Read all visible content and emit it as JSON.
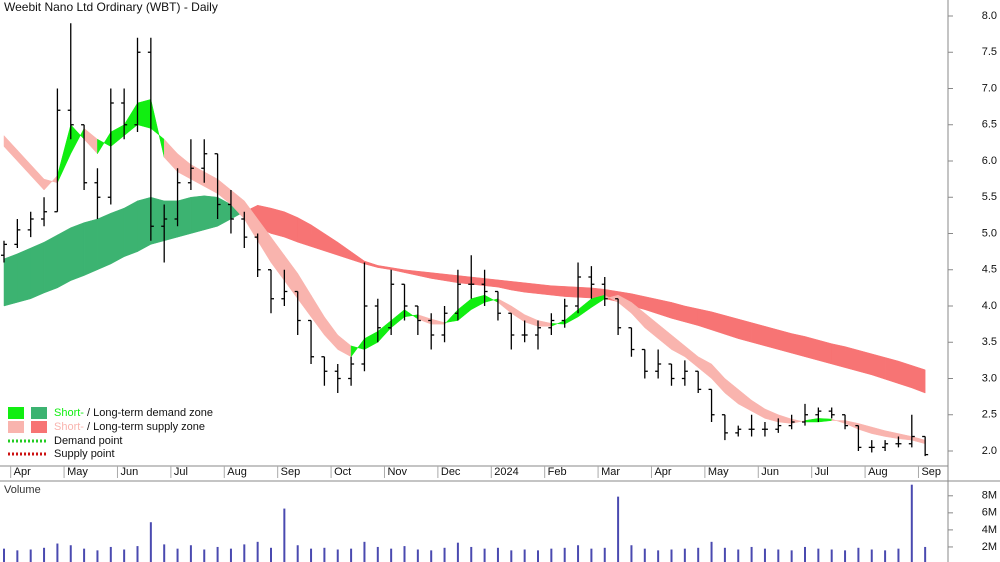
{
  "chart_data": {
    "type": "ohlc",
    "title": "Weebit Nano Ltd Ordinary (WBT) - Daily",
    "color": "#000000",
    "categories": [
      null,
      "Apr",
      null,
      null,
      null,
      "May",
      null,
      null,
      null,
      "Jun",
      null,
      null,
      null,
      "Jul",
      null,
      null,
      null,
      "Aug",
      null,
      null,
      null,
      "Sep",
      null,
      null,
      null,
      "Oct",
      null,
      null,
      null,
      "Nov",
      null,
      null,
      null,
      "Dec",
      null,
      null,
      null,
      "2024",
      null,
      null,
      null,
      "Feb",
      null,
      null,
      null,
      "Mar",
      null,
      null,
      null,
      "Apr",
      null,
      null,
      null,
      "May",
      null,
      null,
      null,
      "Jun",
      null,
      null,
      null,
      "Jul",
      null,
      null,
      null,
      "Aug",
      null,
      null,
      null,
      "Sep"
    ],
    "open": [
      4.7,
      4.85,
      5.05,
      5.2,
      5.3,
      6.7,
      6.5,
      5.7,
      5.5,
      6.8,
      6.5,
      7.5,
      5.1,
      5.2,
      5.7,
      5.9,
      6.1,
      5.4,
      5.2,
      4.95,
      4.5,
      4.1,
      4.2,
      3.8,
      3.3,
      3.1,
      3.0,
      3.2,
      4.0,
      3.7,
      4.3,
      4.0,
      3.8,
      3.6,
      3.9,
      4.3,
      4.3,
      4.2,
      3.9,
      3.6,
      3.6,
      3.7,
      3.8,
      4.0,
      4.4,
      4.3,
      4.1,
      3.7,
      3.4,
      3.1,
      3.2,
      3.0,
      3.1,
      2.85,
      2.5,
      2.25,
      2.3,
      2.3,
      2.3,
      2.35,
      2.4,
      2.5,
      2.55,
      2.5,
      2.35,
      2.05,
      2.05,
      2.1,
      2.1,
      2.2
    ],
    "high": [
      4.9,
      5.2,
      5.3,
      5.5,
      7.0,
      7.9,
      6.5,
      5.9,
      7.0,
      7.0,
      7.7,
      7.7,
      5.4,
      5.9,
      6.3,
      6.3,
      6.1,
      5.6,
      5.3,
      5.0,
      4.5,
      4.5,
      4.2,
      3.8,
      3.3,
      3.2,
      3.3,
      4.6,
      4.1,
      4.5,
      4.3,
      4.0,
      3.9,
      4.0,
      4.5,
      4.7,
      4.5,
      4.2,
      3.9,
      3.8,
      3.8,
      3.9,
      4.1,
      4.6,
      4.55,
      4.4,
      4.1,
      3.7,
      3.4,
      3.4,
      3.2,
      3.25,
      3.1,
      2.85,
      2.5,
      2.35,
      2.5,
      2.4,
      2.45,
      2.5,
      2.65,
      2.6,
      2.6,
      2.5,
      2.35,
      2.15,
      2.15,
      2.2,
      2.5,
      2.2
    ],
    "low": [
      4.6,
      4.8,
      4.95,
      5.1,
      5.3,
      6.3,
      5.6,
      5.2,
      5.4,
      6.3,
      6.4,
      4.9,
      4.6,
      5.1,
      5.6,
      5.7,
      5.2,
      5.0,
      4.8,
      4.4,
      3.9,
      4.0,
      3.6,
      3.2,
      2.9,
      2.8,
      2.9,
      3.1,
      3.5,
      3.6,
      3.8,
      3.6,
      3.4,
      3.5,
      3.8,
      4.1,
      4.0,
      3.8,
      3.4,
      3.5,
      3.4,
      3.6,
      3.7,
      3.9,
      4.1,
      4.0,
      3.6,
      3.3,
      3.0,
      3.0,
      2.9,
      2.9,
      2.8,
      2.4,
      2.15,
      2.2,
      2.2,
      2.2,
      2.25,
      2.3,
      2.35,
      2.4,
      2.45,
      2.3,
      2.0,
      1.98,
      2.0,
      2.05,
      2.05,
      1.93
    ],
    "close": [
      4.85,
      5.05,
      5.2,
      5.3,
      6.7,
      6.5,
      5.7,
      5.5,
      6.8,
      6.5,
      7.5,
      5.1,
      5.2,
      5.7,
      5.9,
      6.1,
      5.4,
      5.2,
      4.95,
      4.5,
      4.1,
      4.2,
      3.8,
      3.3,
      3.1,
      3.0,
      3.2,
      4.0,
      3.7,
      4.3,
      4.0,
      3.8,
      3.6,
      3.9,
      4.3,
      4.3,
      4.2,
      3.9,
      3.6,
      3.6,
      3.7,
      3.8,
      4.0,
      4.4,
      4.3,
      4.1,
      3.7,
      3.4,
      3.1,
      3.2,
      3.0,
      3.1,
      2.85,
      2.5,
      2.25,
      2.3,
      2.3,
      2.3,
      2.35,
      2.4,
      2.5,
      2.55,
      2.5,
      2.35,
      2.05,
      2.05,
      2.1,
      2.1,
      2.2,
      1.95
    ],
    "short_fast": [
      6.2,
      6.0,
      5.8,
      5.6,
      5.8,
      6.5,
      6.3,
      6.1,
      6.4,
      6.5,
      6.8,
      6.85,
      6.05,
      5.85,
      5.75,
      5.65,
      5.55,
      5.4,
      5.2,
      4.9,
      4.6,
      4.35,
      4.1,
      3.85,
      3.6,
      3.4,
      3.3,
      3.55,
      3.65,
      3.8,
      3.95,
      3.82,
      3.75,
      3.75,
      3.95,
      4.1,
      4.15,
      4.05,
      3.9,
      3.78,
      3.72,
      3.72,
      3.8,
      3.95,
      4.1,
      4.15,
      4.05,
      3.9,
      3.7,
      3.55,
      3.4,
      3.3,
      3.15,
      3.0,
      2.8,
      2.65,
      2.55,
      2.45,
      2.4,
      2.38,
      2.42,
      2.45,
      2.44,
      2.38,
      2.3,
      2.24,
      2.2,
      2.17,
      2.15,
      2.1
    ],
    "short_slow": [
      6.35,
      6.15,
      5.95,
      5.75,
      5.7,
      6.1,
      6.45,
      6.3,
      6.2,
      6.35,
      6.5,
      6.45,
      6.3,
      6.1,
      5.95,
      5.85,
      5.75,
      5.6,
      5.45,
      5.2,
      4.95,
      4.7,
      4.45,
      4.15,
      3.85,
      3.6,
      3.45,
      3.4,
      3.5,
      3.7,
      3.85,
      3.88,
      3.82,
      3.77,
      3.8,
      3.95,
      4.05,
      4.1,
      4.0,
      3.88,
      3.8,
      3.76,
      3.75,
      3.85,
      3.98,
      4.1,
      4.15,
      4.05,
      3.9,
      3.75,
      3.6,
      3.45,
      3.3,
      3.2,
      3.0,
      2.85,
      2.7,
      2.58,
      2.5,
      2.44,
      2.4,
      2.4,
      2.42,
      2.42,
      2.38,
      2.33,
      2.28,
      2.24,
      2.2,
      2.15
    ],
    "long_fast": [
      4.65,
      4.72,
      4.8,
      4.88,
      4.98,
      5.08,
      5.15,
      5.2,
      5.28,
      5.35,
      5.45,
      5.5,
      5.45,
      5.45,
      5.5,
      5.52,
      5.5,
      5.4,
      5.28,
      5.08,
      5.0,
      4.95,
      4.88,
      4.82,
      4.76,
      4.7,
      4.64,
      4.58,
      4.53,
      4.5,
      4.46,
      4.42,
      4.38,
      4.35,
      4.32,
      4.3,
      4.28,
      4.26,
      4.22,
      4.19,
      4.17,
      4.15,
      4.13,
      4.12,
      4.11,
      4.1,
      4.06,
      4.0,
      3.95,
      3.89,
      3.83,
      3.78,
      3.73,
      3.67,
      3.61,
      3.55,
      3.5,
      3.45,
      3.4,
      3.35,
      3.3,
      3.25,
      3.2,
      3.15,
      3.1,
      3.05,
      2.99,
      2.93,
      2.87,
      2.8
    ],
    "long_slow": [
      4.0,
      4.05,
      4.1,
      4.18,
      4.25,
      4.35,
      4.42,
      4.5,
      4.58,
      4.68,
      4.75,
      4.85,
      4.9,
      4.95,
      5.0,
      5.05,
      5.1,
      5.2,
      5.3,
      5.39,
      5.35,
      5.3,
      5.22,
      5.12,
      5.0,
      4.88,
      4.75,
      4.62,
      4.56,
      4.53,
      4.5,
      4.48,
      4.46,
      4.44,
      4.42,
      4.4,
      4.38,
      4.36,
      4.34,
      4.32,
      4.3,
      4.28,
      4.27,
      4.26,
      4.25,
      4.23,
      4.2,
      4.17,
      4.13,
      4.09,
      4.05,
      4.0,
      3.96,
      3.92,
      3.87,
      3.82,
      3.77,
      3.72,
      3.67,
      3.62,
      3.58,
      3.53,
      3.48,
      3.44,
      3.39,
      3.34,
      3.29,
      3.24,
      3.18,
      3.12
    ],
    "short_demand_color": "#11ee11",
    "long_demand_color": "#3cb371",
    "short_supply_color": "#f9b4ae",
    "long_supply_color": "#f77474",
    "ylim": [
      1.8,
      8.2
    ],
    "yticks": [
      {
        "value": 2,
        "label": "2.0"
      },
      2.5,
      {
        "value": 3,
        "label": "3.0"
      },
      3.5,
      {
        "value": 4,
        "label": "4.0"
      },
      4.5,
      {
        "value": 5,
        "label": "5.0"
      },
      5.5,
      {
        "value": 6,
        "label": "6.0"
      },
      6.5,
      {
        "value": 7,
        "label": "7.0"
      },
      7.5,
      {
        "value": 8,
        "label": "8.0"
      }
    ],
    "legend": [
      {
        "short": "Short-",
        "rest": " / Long-term demand zone",
        "kind": "demand"
      },
      {
        "short": "Short-",
        "rest": " / Long-term supply zone",
        "kind": "supply"
      }
    ],
    "points": [
      {
        "label": "Demand point",
        "color": "#22cc22"
      },
      {
        "label": "Supply point",
        "color": "#cc1111"
      }
    ],
    "volume": {
      "label": "Volume",
      "color": "#4a4ab0",
      "values": [
        1800000,
        1600000,
        1700000,
        1900000,
        2400000,
        2200000,
        1800000,
        1600000,
        2000000,
        1700000,
        2100000,
        4900000,
        2300000,
        1800000,
        2200000,
        1700000,
        2000000,
        1800000,
        2300000,
        2600000,
        1900000,
        6500000,
        2200000,
        1800000,
        1900000,
        1700000,
        1800000,
        2600000,
        2000000,
        1800000,
        2100000,
        1700000,
        1600000,
        1900000,
        2500000,
        2000000,
        1800000,
        1900000,
        1600000,
        1700000,
        1600000,
        1800000,
        1900000,
        2200000,
        1800000,
        1900000,
        7900000,
        2200000,
        1800000,
        1600000,
        1700000,
        1800000,
        1900000,
        2600000,
        1900000,
        1700000,
        2000000,
        1800000,
        1700000,
        1600000,
        2000000,
        1800000,
        1700000,
        1600000,
        1900000,
        1700000,
        1600000,
        1800000,
        9300000,
        2000000
      ],
      "ylim": [
        0,
        9500000
      ],
      "yticks": [
        {
          "value": 2000000,
          "label": "2M"
        },
        {
          "value": 4000000,
          "label": "4M"
        },
        {
          "value": 6000000,
          "label": "6M"
        },
        {
          "value": 8000000,
          "label": "8M"
        }
      ]
    }
  }
}
